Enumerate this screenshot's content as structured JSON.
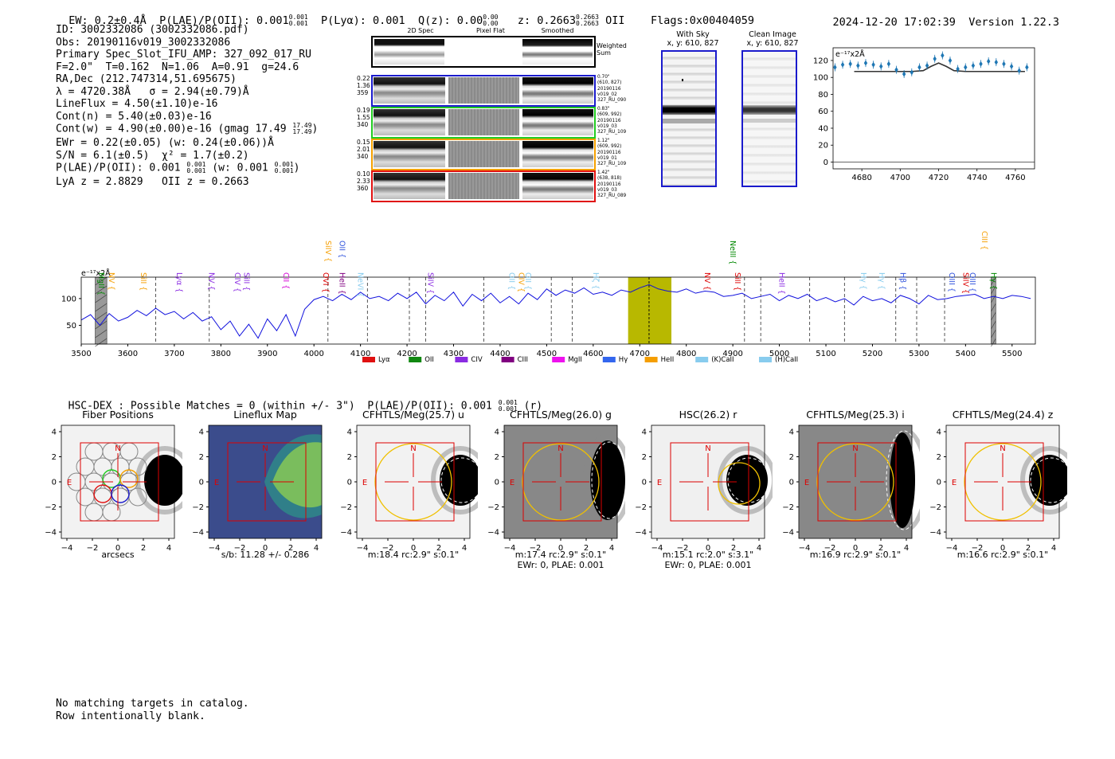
{
  "header": {
    "ew": "EW: 0.2±0.4Å",
    "plae_label": "P(LAE)/P(OII): 0.001",
    "plae_hi": "0.001",
    "plae_lo": "0.001",
    "plya": "P(Lyα): 0.001",
    "qz_label": "Q(z): 0.00",
    "qz_hi": "0.00",
    "qz_lo": "0.00",
    "z_label": "z: 0.2663",
    "z_hi": "0.2663",
    "z_lo": "0.2663",
    "z_line": "OII",
    "flags": "Flags:0x00404059",
    "datetime": "2024-12-20 17:02:39",
    "version": "Version 1.22.3"
  },
  "info": {
    "id": "ID: 3002332086 (3002332086.pdf)",
    "obs": "Obs: 20190116v019_3002332086",
    "primary": "Primary Spec_Slot_IFU_AMP: 327_092_017_RU",
    "f_line": "F=2.0\"  T=0.162  N=1.06  A=0.91  g=24.6",
    "radec": "RA,Dec (212.747314,51.695675)",
    "lambda": "λ = 4720.38Å   σ = 2.94(±0.79)Å",
    "lineflux": "LineFlux = 4.50(±1.10)e-16",
    "contn": "Cont(n) = 5.40(±0.03)e-16",
    "contw": "Cont(w) = 4.90(±0.00)e-16 (gmag 17.49",
    "contw_hi": "17.49",
    "contw_lo": "17.49",
    "ewr": "EWr = 0.22(±0.05) (w: 0.24(±0.06))Å",
    "sn": "S/N = 6.1(±0.5)  χ² = 1.7(±0.2)",
    "plae": "P(LAE)/P(OII): 0.001",
    "plae_hi": "0.001",
    "plae_lo": "0.001",
    "plae_w": "(w: 0.001",
    "plae_w_hi": "0.001",
    "plae_w_lo": "0.001",
    "lyaz": "LyA z = 2.8829   OII z = 0.2663"
  },
  "fiber_panel": {
    "col_headers": [
      "2D Spec",
      "Pixel Flat",
      "Smoothed"
    ],
    "weighted_sum": "Weighted Sum",
    "rows": [
      {
        "color": "#1a1acc",
        "left": [
          "0.22",
          "1.36",
          "359"
        ],
        "right": [
          "0.70\"",
          "(610, 827)",
          "20190116",
          "v019_02",
          "327_RU_090"
        ]
      },
      {
        "color": "#22cc22",
        "left": [
          "0.19",
          "1.55",
          "340"
        ],
        "right": [
          "0.83\"",
          "(609, 992)",
          "20190116",
          "v019_03",
          "327_RU_109"
        ]
      },
      {
        "color": "#f5a000",
        "left": [
          "0.15",
          "2.01",
          "340"
        ],
        "right": [
          "1.12\"",
          "(609, 992)",
          "20190116",
          "v019_01",
          "327_RU_109"
        ]
      },
      {
        "color": "#e01010",
        "left": [
          "0.10",
          "2.33",
          "360"
        ],
        "right": [
          "1.42\"",
          "(638, 818)",
          "20190116",
          "v019_03",
          "327_RU_089"
        ]
      }
    ]
  },
  "sky_panels": [
    {
      "title": "With Sky",
      "coord": "x, y: 610, 827"
    },
    {
      "title": "Clean Image",
      "coord": "x, y: 610, 827"
    }
  ],
  "colors": {
    "spectrum": "#1010dd",
    "fit_marker": "#1f77b4",
    "highlight": "#b8b800",
    "stamp_box": "#dd0000",
    "aperture": "#f0c000"
  },
  "chart_data": [
    {
      "type": "scatter",
      "name": "zoom-fit",
      "ylabel": "e⁻¹⁷x2Å",
      "xlim": [
        4665,
        4770
      ],
      "ylim": [
        -8,
        135
      ],
      "xticks": [
        4680,
        4700,
        4720,
        4740,
        4760
      ],
      "yticks": [
        0,
        20,
        40,
        60,
        80,
        100,
        120
      ],
      "x": [
        4666,
        4670,
        4674,
        4678,
        4682,
        4686,
        4690,
        4694,
        4698,
        4702,
        4706,
        4710,
        4714,
        4718,
        4722,
        4726,
        4730,
        4734,
        4738,
        4742,
        4746,
        4750,
        4754,
        4758,
        4762,
        4766
      ],
      "values": [
        112,
        115,
        116,
        114,
        117,
        115,
        113,
        116,
        109,
        104,
        106,
        112,
        114,
        122,
        126,
        120,
        110,
        112,
        114,
        116,
        119,
        118,
        116,
        113,
        108,
        112
      ],
      "model_x": [
        4676,
        4706,
        4712,
        4716,
        4720,
        4724,
        4728,
        4734,
        4765
      ],
      "model_y": [
        107,
        107,
        108,
        113,
        117,
        113,
        108,
        107,
        107
      ]
    },
    {
      "type": "line",
      "name": "full-spectrum",
      "ylabel": "e⁻¹⁷x2Å",
      "xlim": [
        3500,
        5550
      ],
      "ylim": [
        15,
        140
      ],
      "xticks": [
        3500,
        3600,
        3700,
        3800,
        3900,
        4000,
        4100,
        4200,
        4300,
        4400,
        4500,
        4600,
        4700,
        4800,
        4900,
        5000,
        5100,
        5200,
        5300,
        5400,
        5500
      ],
      "yticks": [
        50,
        100
      ],
      "x": [
        3500,
        3520,
        3540,
        3560,
        3580,
        3600,
        3620,
        3640,
        3660,
        3680,
        3700,
        3720,
        3740,
        3760,
        3780,
        3800,
        3820,
        3840,
        3860,
        3880,
        3900,
        3920,
        3940,
        3960,
        3980,
        4000,
        4020,
        4040,
        4060,
        4080,
        4100,
        4120,
        4140,
        4160,
        4180,
        4200,
        4220,
        4240,
        4260,
        4280,
        4300,
        4320,
        4340,
        4360,
        4380,
        4400,
        4420,
        4440,
        4460,
        4480,
        4500,
        4520,
        4540,
        4560,
        4580,
        4600,
        4620,
        4640,
        4660,
        4680,
        4700,
        4720,
        4740,
        4760,
        4780,
        4800,
        4820,
        4840,
        4860,
        4880,
        4900,
        4920,
        4940,
        4960,
        4980,
        5000,
        5020,
        5040,
        5060,
        5080,
        5100,
        5120,
        5140,
        5160,
        5180,
        5200,
        5220,
        5240,
        5260,
        5280,
        5300,
        5320,
        5340,
        5360,
        5380,
        5400,
        5420,
        5440,
        5460,
        5480,
        5500,
        5520,
        5540
      ],
      "values": [
        60,
        70,
        50,
        72,
        58,
        65,
        78,
        68,
        82,
        70,
        76,
        62,
        74,
        58,
        66,
        42,
        58,
        30,
        52,
        26,
        62,
        40,
        70,
        30,
        80,
        98,
        104,
        96,
        108,
        98,
        112,
        100,
        104,
        96,
        110,
        100,
        112,
        90,
        106,
        96,
        112,
        86,
        108,
        96,
        110,
        92,
        104,
        90,
        110,
        98,
        118,
        106,
        116,
        110,
        120,
        108,
        112,
        106,
        116,
        112,
        120,
        126,
        118,
        114,
        112,
        118,
        110,
        114,
        112,
        104,
        106,
        110,
        100,
        104,
        108,
        96,
        106,
        100,
        108,
        96,
        102,
        94,
        100,
        88,
        104,
        96,
        100,
        92,
        106,
        100,
        90,
        106,
        98,
        100,
        104,
        106,
        108,
        100,
        104,
        100,
        106,
        104,
        100
      ],
      "highlight_range": [
        4675,
        4768
      ],
      "marker_wavelength": 4720,
      "masked_ranges": [
        [
          3530,
          3555
        ],
        [
          5455,
          5465
        ]
      ],
      "dashed_lines": [
        3660,
        3775,
        4030,
        4115,
        4205,
        4240,
        4365,
        4510,
        4555,
        4925,
        4960,
        5065,
        5140,
        5250,
        5295,
        5355
      ],
      "line_labels": [
        {
          "name": "MgII",
          "color": "#008800",
          "w": 3538,
          "tier": 3
        },
        {
          "name": "NV",
          "color": "#f59e00",
          "w": 3560,
          "tier": 3
        },
        {
          "name": "SiII",
          "color": "#f59e00",
          "w": 3628,
          "tier": 3
        },
        {
          "name": "Lyα",
          "color": "#8a2be2",
          "w": 3705,
          "tier": 3
        },
        {
          "name": "NV",
          "color": "#8a2be2",
          "w": 3775,
          "tier": 3
        },
        {
          "name": "CIV",
          "color": "#8a2be2",
          "w": 3830,
          "tier": 3
        },
        {
          "name": "SiII",
          "color": "#8a2be2",
          "w": 3850,
          "tier": 3
        },
        {
          "name": "CII",
          "color": "#d400d4",
          "w": 3935,
          "tier": 3
        },
        {
          "name": "OVI",
          "color": "#dd0000",
          "w": 4020,
          "tier": 3
        },
        {
          "name": "SiIV",
          "color": "#f59e00",
          "w": 4025,
          "tier": 1
        },
        {
          "name": "OII",
          "color": "#3355dd",
          "w": 4055,
          "tier": 1
        },
        {
          "name": "HeII",
          "color": "#800080",
          "w": 4055,
          "tier": 3
        },
        {
          "name": "NeVI",
          "color": "#88ccee",
          "w": 4095,
          "tier": 3
        },
        {
          "name": "SiIV",
          "color": "#8a2be2",
          "w": 4245,
          "tier": 3
        },
        {
          "name": "OII",
          "color": "#88ccee",
          "w": 4420,
          "tier": 3
        },
        {
          "name": "CIV",
          "color": "#f59e00",
          "w": 4440,
          "tier": 3
        },
        {
          "name": "OII",
          "color": "#88ccee",
          "w": 4455,
          "tier": 3
        },
        {
          "name": "Hζ",
          "color": "#88ccee",
          "w": 4600,
          "tier": 3
        },
        {
          "name": "NV",
          "color": "#dd0000",
          "w": 4840,
          "tier": 3
        },
        {
          "name": "NeIII",
          "color": "#008800",
          "w": 4895,
          "tier": 1
        },
        {
          "name": "SiII",
          "color": "#dd0000",
          "w": 4905,
          "tier": 3
        },
        {
          "name": "HeII",
          "color": "#8a2be2",
          "w": 5000,
          "tier": 3
        },
        {
          "name": "Hγ",
          "color": "#88ccee",
          "w": 5175,
          "tier": 3
        },
        {
          "name": "Hγ",
          "color": "#88ccee",
          "w": 5215,
          "tier": 3
        },
        {
          "name": "Hβ",
          "color": "#3355dd",
          "w": 5260,
          "tier": 3
        },
        {
          "name": "OIII",
          "color": "#3355dd",
          "w": 5365,
          "tier": 3
        },
        {
          "name": "SiIV",
          "color": "#dd0000",
          "w": 5395,
          "tier": 3
        },
        {
          "name": "OIII",
          "color": "#3355dd",
          "w": 5410,
          "tier": 3
        },
        {
          "name": "CIII",
          "color": "#f59e00",
          "w": 5435,
          "tier": 0
        },
        {
          "name": "Hγ",
          "color": "#008800",
          "w": 5455,
          "tier": 3
        }
      ],
      "legend": [
        {
          "name": "Lyα",
          "color": "#e01010"
        },
        {
          "name": "OII",
          "color": "#118811"
        },
        {
          "name": "CIV",
          "color": "#8a2be2"
        },
        {
          "name": "CIII",
          "color": "#800080"
        },
        {
          "name": "MgII",
          "color": "#ee11ee"
        },
        {
          "name": "Hγ",
          "color": "#3366ee"
        },
        {
          "name": "HeII",
          "color": "#f59e00"
        },
        {
          "name": "(K)CaII",
          "color": "#88ccee"
        },
        {
          "name": "(H)CaII",
          "color": "#88ccee"
        }
      ]
    }
  ],
  "catalog": {
    "heading": "HSC-DEX : Possible Matches = 0 (within +/- 3\")",
    "plae": "P(LAE)/P(OII): 0.001",
    "plae_hi": "0.001",
    "plae_lo": "0.001",
    "band": "(r)"
  },
  "stamps": [
    {
      "title": "Fiber Positions",
      "cap1": "arcsecs",
      "cap2": ""
    },
    {
      "title": "Lineflux Map",
      "cap1": "s/b: 11.28 +/- 0.286",
      "cap2": ""
    },
    {
      "title": "CFHTLS/Meg(25.7) u",
      "cap1": "m:18.4 rc:2.9\"  s:0.1\"",
      "cap2": ""
    },
    {
      "title": "CFHTLS/Meg(26.0) g",
      "cap1": "m:17.4 rc:2.9\"  s:0.1\"",
      "cap2": "EWr: 0, PLAE: 0.001"
    },
    {
      "title": "HSC(26.2) r",
      "cap1": "m:15.1  rc:2.0\"  s:3.1\"",
      "cap2": "EWr: 0, PLAE: 0.001"
    },
    {
      "title": "CFHTLS/Meg(25.3) i",
      "cap1": "m:16.9 rc:2.9\"  s:0.1\"",
      "cap2": ""
    },
    {
      "title": "CFHTLS/Meg(24.4) z",
      "cap1": "m:16.6 rc:2.9\"  s:0.1\"",
      "cap2": ""
    }
  ],
  "stamp_axis": {
    "ticks": [
      "4",
      "2",
      "0",
      "−2",
      "−4"
    ],
    "xticks": [
      "−4",
      "−2",
      "0",
      "2",
      "4"
    ],
    "north": "N",
    "east": "E"
  },
  "footer": {
    "line1": "No matching targets in catalog.",
    "line2": "Row intentionally blank."
  }
}
